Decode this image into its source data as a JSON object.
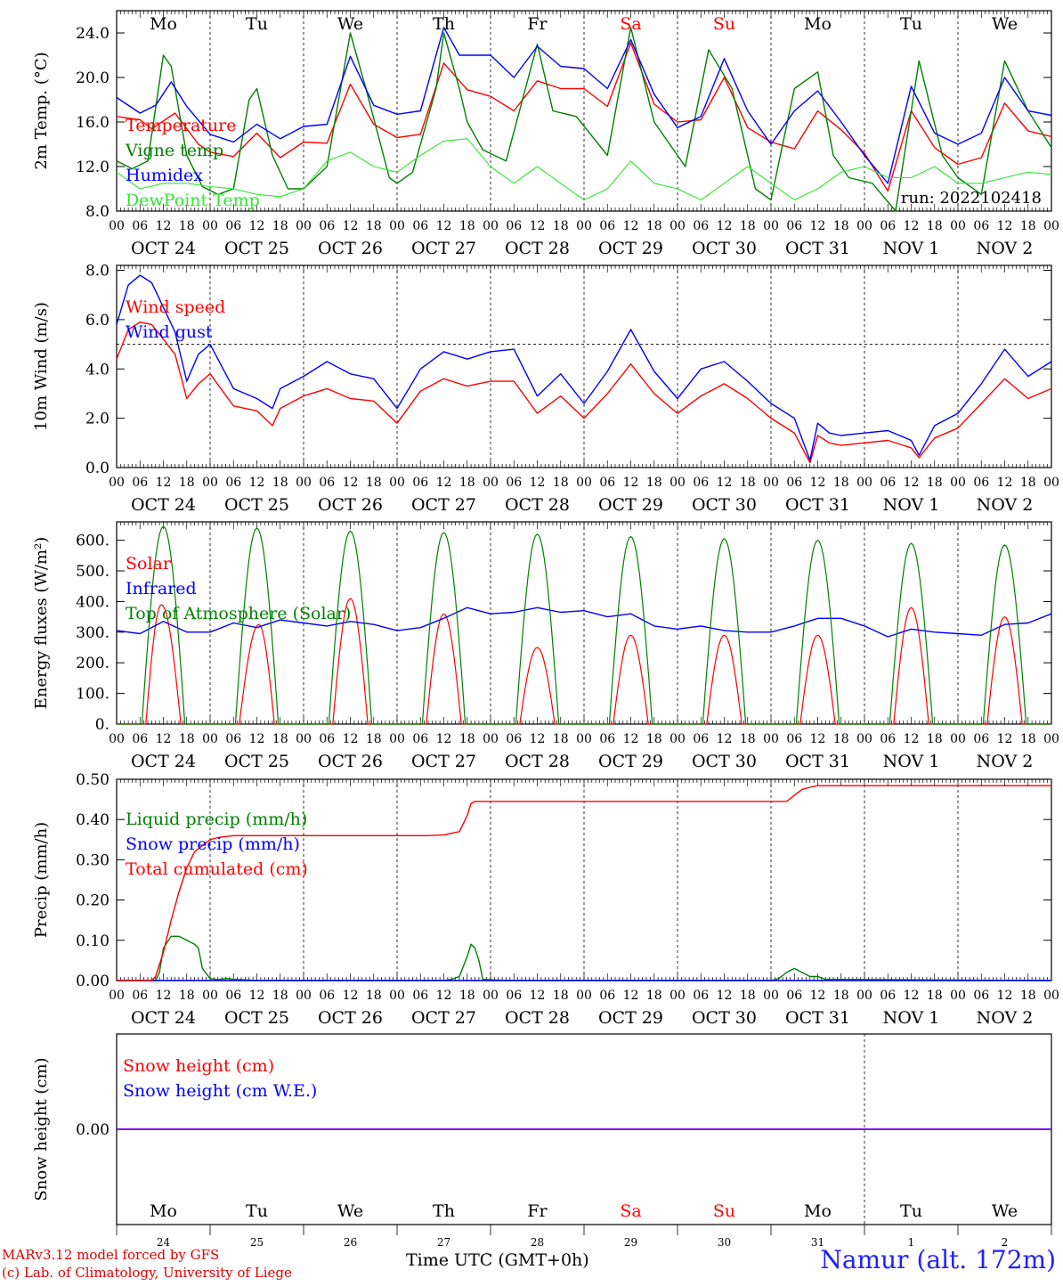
{
  "footer": {
    "credit_line1": "MARv3.12 model forced by GFS",
    "credit_line2": "(c) Lab. of Climatology, University of Liege",
    "time_label": "Time UTC (GMT+0h)",
    "station": "Namur (alt. 172m)"
  },
  "colors": {
    "red": "#ff0000",
    "green": "#008000",
    "blue": "#0000ff",
    "lightgreen": "#2ee82e",
    "purple": "#8000ff",
    "weekend": "#ff0000"
  },
  "time_axis": {
    "n_days": 10,
    "hour_ticks": [
      "00",
      "06",
      "12",
      "18"
    ],
    "last_tick": "00",
    "dates": [
      "OCT 24",
      "OCT 25",
      "OCT 26",
      "OCT 27",
      "OCT 28",
      "OCT 29",
      "OCT 30",
      "OCT 31",
      "NOV  1",
      "NOV  2"
    ],
    "weekdays": [
      "Mo",
      "Tu",
      "We",
      "Th",
      "Fr",
      "Sa",
      "Su",
      "Mo",
      "Tu",
      "We"
    ],
    "weekend_index": [
      5,
      6
    ],
    "day_numbers": [
      "24",
      "25",
      "26",
      "27",
      "28",
      "29",
      "30",
      "31",
      "1",
      "2"
    ]
  },
  "chart_data": [
    {
      "type": "line",
      "ylabel": "2m Temp. (°C)",
      "ylim": [
        8,
        26
      ],
      "yticks": [
        "8.0",
        "12.0",
        "16.0",
        "20.0",
        "24.0"
      ],
      "ytick_values": [
        8,
        12,
        16,
        20,
        24
      ],
      "annotation": "run: 2022102418",
      "x_unit": "hours since OCT 24 00 UTC",
      "series": [
        {
          "name": "Temperature",
          "color": "red",
          "x": [
            0,
            6,
            9,
            15,
            21,
            24,
            30,
            36,
            42,
            48,
            54,
            60,
            66,
            72,
            78,
            84,
            90,
            96,
            102,
            108,
            114,
            120,
            126,
            132,
            138,
            144,
            150,
            156,
            162,
            168,
            174,
            180,
            186,
            192,
            198,
            204,
            210,
            216,
            222,
            228,
            234,
            240
          ],
          "y": [
            16.5,
            16.2,
            15.4,
            16.8,
            14.0,
            13.3,
            12.9,
            15.0,
            12.8,
            14.2,
            14.1,
            19.4,
            15.8,
            14.6,
            14.9,
            21.3,
            18.9,
            18.3,
            17.0,
            19.7,
            19.0,
            19.0,
            17.4,
            23.1,
            17.6,
            16.0,
            16.2,
            20.0,
            15.5,
            14.2,
            13.6,
            17.0,
            15.3,
            13.2,
            9.8,
            17.0,
            13.7,
            12.2,
            12.8,
            17.7,
            15.2,
            14.7
          ]
        },
        {
          "name": "Vigne temp",
          "color": "green",
          "x": [
            0,
            4,
            8,
            12,
            14,
            18,
            22,
            26,
            30,
            34,
            36,
            40,
            44,
            48,
            54,
            60,
            64,
            70,
            72,
            76,
            82,
            84,
            88,
            90,
            94,
            100,
            108,
            112,
            118,
            126,
            132,
            138,
            146,
            152,
            158,
            164,
            168,
            174,
            180,
            184,
            188,
            194,
            200,
            206,
            212,
            216,
            222,
            228,
            234,
            240
          ],
          "y": [
            12.5,
            11.8,
            12.5,
            22.0,
            21.0,
            13.0,
            10.2,
            9.5,
            10.0,
            18.0,
            19.0,
            13.0,
            10.0,
            10.0,
            12.0,
            24.0,
            19.0,
            11.0,
            10.5,
            11.5,
            19.0,
            24.0,
            19.0,
            16.0,
            13.5,
            12.5,
            23.0,
            17.0,
            16.5,
            13.0,
            24.5,
            16.0,
            12.0,
            22.5,
            19.0,
            10.0,
            9.0,
            19.0,
            20.5,
            13.0,
            11.0,
            10.5,
            8.0,
            21.5,
            13.0,
            11.0,
            9.5,
            21.5,
            17.0,
            13.7
          ]
        },
        {
          "name": "Humidex",
          "color": "blue",
          "x": [
            0,
            6,
            10,
            14,
            18,
            24,
            30,
            36,
            42,
            48,
            54,
            60,
            66,
            72,
            78,
            84,
            88,
            92,
            96,
            102,
            108,
            114,
            120,
            126,
            132,
            138,
            144,
            150,
            156,
            162,
            168,
            174,
            180,
            186,
            192,
            198,
            204,
            210,
            216,
            222,
            228,
            234,
            240
          ],
          "y": [
            18.2,
            16.8,
            17.5,
            19.6,
            17.4,
            14.9,
            14.2,
            15.8,
            14.5,
            15.6,
            15.8,
            21.9,
            17.5,
            16.7,
            17.0,
            24.5,
            22.0,
            22.0,
            22.0,
            20.0,
            22.8,
            21.0,
            20.8,
            19.0,
            23.4,
            18.5,
            15.5,
            16.5,
            21.7,
            17.0,
            14.0,
            17.0,
            18.8,
            16.0,
            13.0,
            10.5,
            19.2,
            15.0,
            14.0,
            15.0,
            20.0,
            17.0,
            16.6
          ]
        },
        {
          "name": "DewPoint Temp",
          "color": "lightgreen",
          "x": [
            0,
            6,
            12,
            18,
            24,
            30,
            36,
            42,
            48,
            54,
            60,
            66,
            72,
            78,
            84,
            90,
            96,
            102,
            108,
            114,
            120,
            126,
            132,
            138,
            144,
            150,
            156,
            162,
            168,
            174,
            180,
            186,
            192,
            198,
            204,
            210,
            216,
            222,
            228,
            234,
            240
          ],
          "y": [
            11.5,
            10.0,
            10.5,
            10.5,
            10.2,
            10.0,
            9.5,
            9.3,
            10.0,
            12.5,
            13.3,
            12.0,
            11.5,
            13.0,
            14.3,
            14.5,
            12.0,
            10.5,
            12.0,
            10.5,
            9.0,
            10.0,
            12.5,
            10.5,
            10.0,
            9.0,
            10.5,
            12.0,
            10.5,
            9.0,
            10.0,
            11.5,
            12.0,
            11.0,
            11.0,
            12.0,
            10.5,
            10.5,
            11.0,
            11.5,
            11.3
          ]
        }
      ]
    },
    {
      "type": "line",
      "ylabel": "10m Wind (m/s)",
      "ylim": [
        0,
        8.2
      ],
      "yticks": [
        "0.0",
        "2.0",
        "4.0",
        "6.0",
        "8.0"
      ],
      "ytick_values": [
        0,
        2,
        4,
        6,
        8
      ],
      "reference_line": 5.0,
      "series": [
        {
          "name": "Wind speed",
          "color": "red",
          "x": [
            0,
            3,
            6,
            9,
            12,
            15,
            18,
            21,
            24,
            30,
            36,
            40,
            42,
            48,
            54,
            60,
            66,
            72,
            78,
            84,
            90,
            96,
            102,
            108,
            114,
            120,
            126,
            132,
            138,
            144,
            150,
            156,
            162,
            168,
            174,
            178,
            180,
            183,
            186,
            192,
            198,
            204,
            206,
            210,
            216,
            222,
            228,
            234,
            240
          ],
          "y": [
            4.4,
            5.6,
            5.9,
            5.8,
            5.2,
            4.6,
            2.8,
            3.4,
            3.8,
            2.5,
            2.3,
            1.7,
            2.4,
            2.9,
            3.2,
            2.8,
            2.7,
            1.8,
            3.1,
            3.6,
            3.3,
            3.5,
            3.5,
            2.2,
            2.9,
            2.0,
            3.0,
            4.2,
            3.0,
            2.2,
            2.9,
            3.4,
            2.8,
            2.0,
            1.4,
            0.2,
            1.3,
            1.0,
            0.9,
            1.0,
            1.1,
            0.8,
            0.4,
            1.2,
            1.6,
            2.6,
            3.6,
            2.8,
            3.2
          ]
        },
        {
          "name": "Wind gust",
          "color": "blue",
          "x": [
            0,
            3,
            6,
            9,
            12,
            15,
            18,
            21,
            24,
            30,
            36,
            40,
            42,
            48,
            54,
            60,
            66,
            72,
            78,
            84,
            90,
            96,
            102,
            108,
            114,
            120,
            126,
            132,
            138,
            144,
            150,
            156,
            162,
            168,
            174,
            178,
            180,
            183,
            186,
            192,
            198,
            204,
            206,
            210,
            216,
            222,
            228,
            234,
            240
          ],
          "y": [
            5.8,
            7.4,
            7.8,
            7.5,
            6.5,
            5.5,
            3.5,
            4.6,
            5.0,
            3.2,
            2.8,
            2.4,
            3.2,
            3.7,
            4.3,
            3.8,
            3.6,
            2.4,
            4.0,
            4.7,
            4.4,
            4.7,
            4.8,
            2.9,
            3.8,
            2.6,
            3.9,
            5.6,
            3.9,
            2.8,
            4.0,
            4.3,
            3.5,
            2.6,
            2.0,
            0.3,
            1.8,
            1.4,
            1.3,
            1.4,
            1.5,
            1.1,
            0.5,
            1.7,
            2.2,
            3.4,
            4.8,
            3.7,
            4.3
          ]
        }
      ]
    },
    {
      "type": "line",
      "ylabel": "Energy fluxes (W/m²)",
      "ylim": [
        0,
        660
      ],
      "yticks": [
        "0.",
        "100.",
        "200.",
        "300.",
        "400.",
        "500.",
        "600."
      ],
      "ytick_values": [
        0,
        100,
        200,
        300,
        400,
        500,
        600
      ],
      "series": [
        {
          "name": "Solar",
          "color": "red",
          "diurnal": true,
          "rise": 7.5,
          "set": 16.5,
          "peaks": [
            390,
            325,
            410,
            360,
            250,
            290,
            290,
            290,
            380,
            350
          ],
          "peak_hours": [
            11.5,
            12.5,
            12,
            12,
            12,
            12,
            12,
            12,
            12,
            12
          ]
        },
        {
          "name": "Infrared",
          "color": "blue",
          "x": [
            0,
            6,
            12,
            18,
            24,
            30,
            36,
            42,
            48,
            54,
            60,
            66,
            72,
            78,
            84,
            90,
            96,
            102,
            108,
            114,
            120,
            126,
            132,
            138,
            144,
            150,
            156,
            162,
            168,
            174,
            180,
            186,
            192,
            198,
            204,
            210,
            216,
            222,
            228,
            234,
            240
          ],
          "y": [
            305,
            295,
            335,
            300,
            300,
            330,
            315,
            340,
            330,
            320,
            335,
            325,
            305,
            315,
            345,
            380,
            360,
            365,
            380,
            365,
            370,
            350,
            360,
            320,
            310,
            320,
            305,
            300,
            300,
            320,
            345,
            345,
            320,
            285,
            310,
            300,
            295,
            290,
            325,
            330,
            360
          ]
        },
        {
          "name": "Top of Atmosphere (Solar)",
          "color": "green",
          "diurnal": true,
          "rise": 6.5,
          "set": 17.5,
          "peaks": [
            645,
            640,
            630,
            625,
            620,
            612,
            605,
            600,
            590,
            585
          ],
          "peak_hours": [
            12,
            12,
            12,
            12,
            12,
            12,
            12,
            12,
            12,
            12
          ]
        }
      ]
    },
    {
      "type": "line",
      "ylabel": "Precip (mm/h)",
      "ylim": [
        0,
        0.5
      ],
      "yticks": [
        "0.00",
        "0.10",
        "0.20",
        "0.30",
        "0.40",
        "0.50"
      ],
      "ytick_values": [
        0,
        0.1,
        0.2,
        0.3,
        0.4,
        0.5
      ],
      "series": [
        {
          "name": "Liquid precip (mm/h)",
          "color": "green",
          "x": [
            0,
            10,
            11,
            12,
            14,
            16,
            18,
            20,
            21,
            22,
            24,
            26,
            28,
            30,
            36,
            60,
            84,
            86,
            88,
            90,
            91,
            92,
            93,
            94,
            100,
            168,
            170,
            172,
            174,
            176,
            178,
            180,
            182,
            240
          ],
          "y": [
            0,
            0,
            0.02,
            0.08,
            0.11,
            0.11,
            0.1,
            0.09,
            0.08,
            0.03,
            0.005,
            0.002,
            0.005,
            0.003,
            0,
            0,
            0,
            0.003,
            0.01,
            0.06,
            0.09,
            0.08,
            0.05,
            0.003,
            0,
            0,
            0.005,
            0.02,
            0.03,
            0.02,
            0.01,
            0.01,
            0.003,
            0
          ]
        },
        {
          "name": "Snow precip (mm/h)",
          "color": "blue",
          "x": [
            0,
            240
          ],
          "y": [
            0,
            0
          ]
        },
        {
          "name": "Total cumulated (cm)",
          "color": "red",
          "x": [
            0,
            9,
            10,
            12,
            14,
            16,
            18,
            20,
            22,
            24,
            26,
            30,
            36,
            60,
            80,
            84,
            88,
            90,
            91,
            92,
            120,
            150,
            172,
            174,
            176,
            178,
            180,
            240
          ],
          "y": [
            0,
            0,
            0.01,
            0.07,
            0.15,
            0.22,
            0.28,
            0.32,
            0.335,
            0.35,
            0.355,
            0.36,
            0.36,
            0.36,
            0.36,
            0.362,
            0.37,
            0.41,
            0.44,
            0.445,
            0.445,
            0.445,
            0.445,
            0.46,
            0.475,
            0.48,
            0.484,
            0.484
          ]
        }
      ]
    },
    {
      "type": "line",
      "ylabel": "Snow height (cm)",
      "ylim": [
        -1,
        1
      ],
      "yticks": [
        "0.00"
      ],
      "ytick_values": [
        0
      ],
      "series": [
        {
          "name": "Snow height (cm)",
          "color": "red",
          "x": [
            0,
            240
          ],
          "y": [
            0,
            0
          ]
        },
        {
          "name": "Snow height (cm W.E.)",
          "color": "blue",
          "x": [
            0,
            240
          ],
          "y": [
            0,
            0
          ]
        }
      ]
    }
  ]
}
